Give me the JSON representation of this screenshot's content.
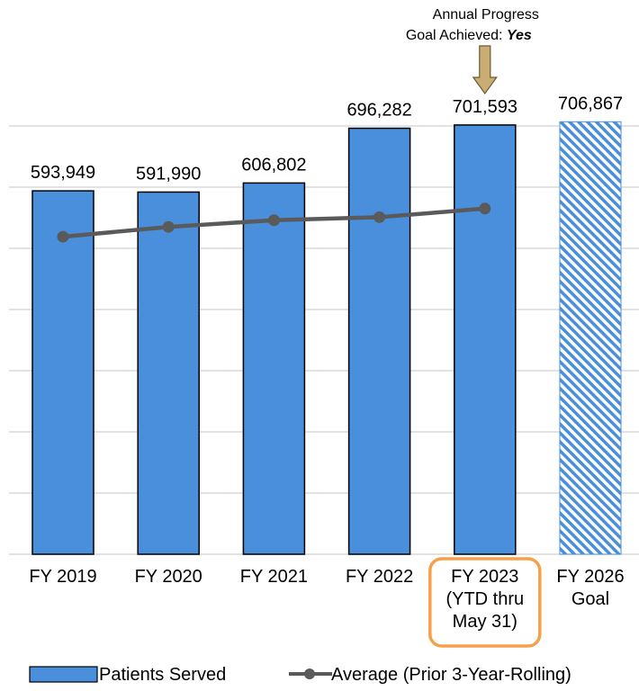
{
  "chart_data": {
    "type": "bar",
    "categories": [
      [
        "FY 2019"
      ],
      [
        "FY 2020"
      ],
      [
        "FY 2021"
      ],
      [
        "FY 2022"
      ],
      [
        "FY 2023",
        "(YTD thru",
        "May 31)"
      ],
      [
        "FY 2026",
        "Goal"
      ]
    ],
    "series": [
      {
        "name": "Patients Served",
        "type": "bar",
        "values": [
          593949,
          591990,
          606802,
          696282,
          701593,
          706867
        ],
        "value_labels": [
          "593,949",
          "591,990",
          "606,802",
          "696,282",
          "701,593",
          "706,867"
        ]
      },
      {
        "name": "Average (Prior 3-Year-Rolling)",
        "type": "line",
        "values": [
          519000,
          535000,
          546000,
          551000,
          565000,
          null
        ]
      }
    ],
    "ylim": [
      0,
      700000
    ],
    "grid": true,
    "legend_position": "bottom",
    "annotation": {
      "line1": "Annual Progress",
      "line2_prefix": "Goal Achieved: ",
      "line2_emphasis": "Yes",
      "target_category_index": 4
    },
    "highlight_category_index": 4,
    "goal_category_index": 5
  },
  "colors": {
    "bar": "#4a8fdb",
    "bar_stroke": "#000000",
    "goal_hatch": "#4a8fdb",
    "line": "#5a5a5a",
    "grid": "#d9d9d9",
    "highlight_box": "#f7a04b",
    "arrow_fill": "#c9ad72",
    "arrow_stroke": "#6b5a33"
  }
}
